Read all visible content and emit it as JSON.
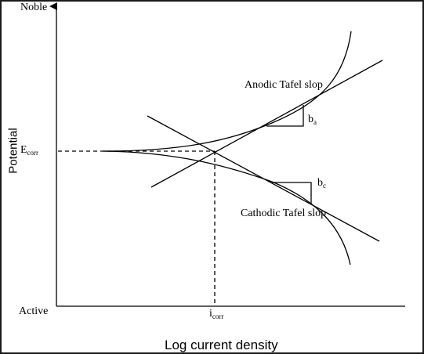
{
  "labels": {
    "noble": "Noble",
    "active": "Active",
    "ecorr_main": "E",
    "ecorr_sub": "corr",
    "icorr_main": "i",
    "icorr_sub": "corr",
    "potential": "Potential",
    "log_current": "Log current density",
    "anodic": "Anodic Tafel slop",
    "cathodic": "Cathodic Tafel slop",
    "ba_main": "b",
    "ba_sub": "a",
    "bc_main": "b",
    "bc_sub": "c"
  },
  "colors": {
    "line": "#000000",
    "background": "#ffffff",
    "border": "#1a1a1a"
  }
}
